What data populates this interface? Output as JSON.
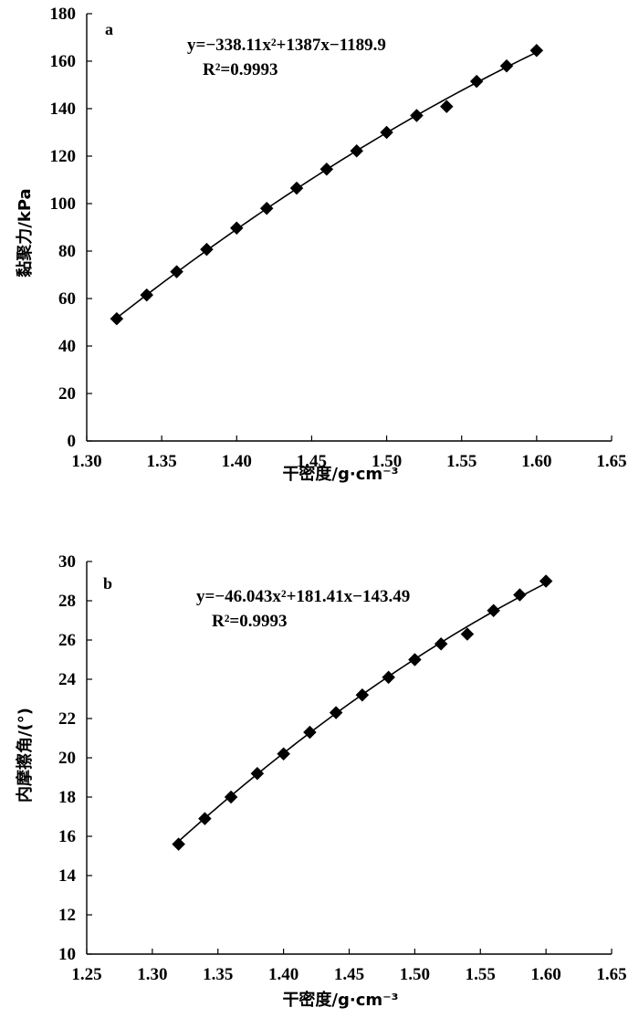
{
  "chart_data": [
    {
      "type": "scatter",
      "panel_label": "a",
      "xlabel": "干密度/g·cm⁻³",
      "ylabel": "黏聚力/kPa",
      "xlim": [
        1.3,
        1.65
      ],
      "ylim": [
        0,
        180
      ],
      "xticks": [
        "1.30",
        "1.35",
        "1.40",
        "1.45",
        "1.50",
        "1.55",
        "1.60",
        "1.65"
      ],
      "yticks": [
        "0",
        "20",
        "40",
        "60",
        "80",
        "100",
        "120",
        "140",
        "160",
        "180"
      ],
      "equation": "y=−338.11x²+1387x−1189.9",
      "r_squared": "R²=0.9993",
      "grid": false,
      "fit": {
        "a": -338.11,
        "b": 1387,
        "c": -1189.9,
        "x_start": 1.32,
        "x_end": 1.6
      },
      "x": [
        1.32,
        1.34,
        1.36,
        1.38,
        1.4,
        1.42,
        1.44,
        1.46,
        1.48,
        1.5,
        1.52,
        1.54,
        1.56,
        1.58,
        1.6
      ],
      "y": [
        51.5,
        61.5,
        71.3,
        80.7,
        89.7,
        98.0,
        106.5,
        114.5,
        122.2,
        130.0,
        137.1,
        140.9,
        151.5,
        158.0,
        164.5
      ]
    },
    {
      "type": "scatter",
      "panel_label": "b",
      "xlabel": "干密度/g·cm⁻³",
      "ylabel": "内摩擦角/(°)",
      "xlim": [
        1.25,
        1.65
      ],
      "ylim": [
        10,
        30
      ],
      "xticks": [
        "1.25",
        "1.30",
        "1.35",
        "1.40",
        "1.45",
        "1.50",
        "1.55",
        "1.60",
        "1.65"
      ],
      "yticks": [
        "10",
        "12",
        "14",
        "16",
        "18",
        "20",
        "22",
        "24",
        "26",
        "28",
        "30"
      ],
      "equation": "y=−46.043x²+181.41x−143.49",
      "r_squared": "R²=0.9993",
      "grid": false,
      "fit": {
        "a": -46.043,
        "b": 181.41,
        "c": -143.49,
        "x_start": 1.32,
        "x_end": 1.6
      },
      "x": [
        1.32,
        1.34,
        1.36,
        1.38,
        1.4,
        1.42,
        1.44,
        1.46,
        1.48,
        1.5,
        1.52,
        1.54,
        1.56,
        1.58,
        1.6
      ],
      "y": [
        15.6,
        16.9,
        18.0,
        19.2,
        20.2,
        21.3,
        22.3,
        23.2,
        24.1,
        25.0,
        25.8,
        26.3,
        27.5,
        28.3,
        29.0
      ]
    }
  ]
}
